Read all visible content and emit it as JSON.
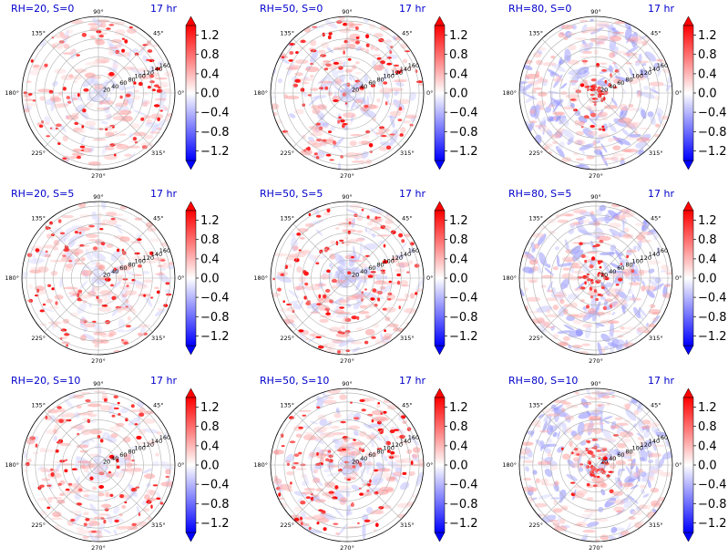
{
  "chart_data": {
    "type": "heatmap",
    "projection": "polar",
    "grid": true,
    "radial_ticks": [
      "20",
      "40",
      "60",
      "80",
      "100",
      "120",
      "140",
      "160"
    ],
    "radial_max": 170,
    "angle_ticks": [
      {
        "deg": 0,
        "label": "0°"
      },
      {
        "deg": 45,
        "label": "45°"
      },
      {
        "deg": 90,
        "label": "90°"
      },
      {
        "deg": 135,
        "label": "135°"
      },
      {
        "deg": 180,
        "label": "180°"
      },
      {
        "deg": 225,
        "label": "225°"
      },
      {
        "deg": 270,
        "label": "270°"
      },
      {
        "deg": 315,
        "label": "315°"
      }
    ],
    "colorbar": {
      "colormap": "bwr",
      "vmin": -1.4,
      "vmax": 1.4,
      "extend": "both",
      "ticks": [
        1.2,
        0.8,
        0.4,
        0.0,
        -0.4,
        -0.8,
        -1.2
      ],
      "tick_labels": [
        "1.2",
        "0.8",
        "0.4",
        "0.0",
        "−0.4",
        "−0.8",
        "−1.2"
      ]
    },
    "colors": {
      "positive": "#ff0000",
      "negative": "#0000ff",
      "zero": "#ffffff",
      "title": "#0000cc"
    },
    "panels": [
      {
        "title": "RH=20, S=0",
        "time": "17 hr",
        "rh": 20,
        "s": 0,
        "blue_strength": 0.15
      },
      {
        "title": "RH=50, S=0",
        "time": "17 hr",
        "rh": 50,
        "s": 0,
        "blue_strength": 0.3
      },
      {
        "title": "RH=80, S=0",
        "time": "17 hr",
        "rh": 80,
        "s": 0,
        "blue_strength": 0.65
      },
      {
        "title": "RH=20, S=5",
        "time": "17 hr",
        "rh": 20,
        "s": 5,
        "blue_strength": 0.15
      },
      {
        "title": "RH=50, S=5",
        "time": "17 hr",
        "rh": 50,
        "s": 5,
        "blue_strength": 0.3
      },
      {
        "title": "RH=80, S=5",
        "time": "17 hr",
        "rh": 80,
        "s": 5,
        "blue_strength": 0.65
      },
      {
        "title": "RH=20, S=10",
        "time": "17 hr",
        "rh": 20,
        "s": 10,
        "blue_strength": 0.15
      },
      {
        "title": "RH=50, S=10",
        "time": "17 hr",
        "rh": 50,
        "s": 10,
        "blue_strength": 0.3
      },
      {
        "title": "RH=80, S=10",
        "time": "17 hr",
        "rh": 80,
        "s": 10,
        "blue_strength": 0.65
      }
    ]
  }
}
